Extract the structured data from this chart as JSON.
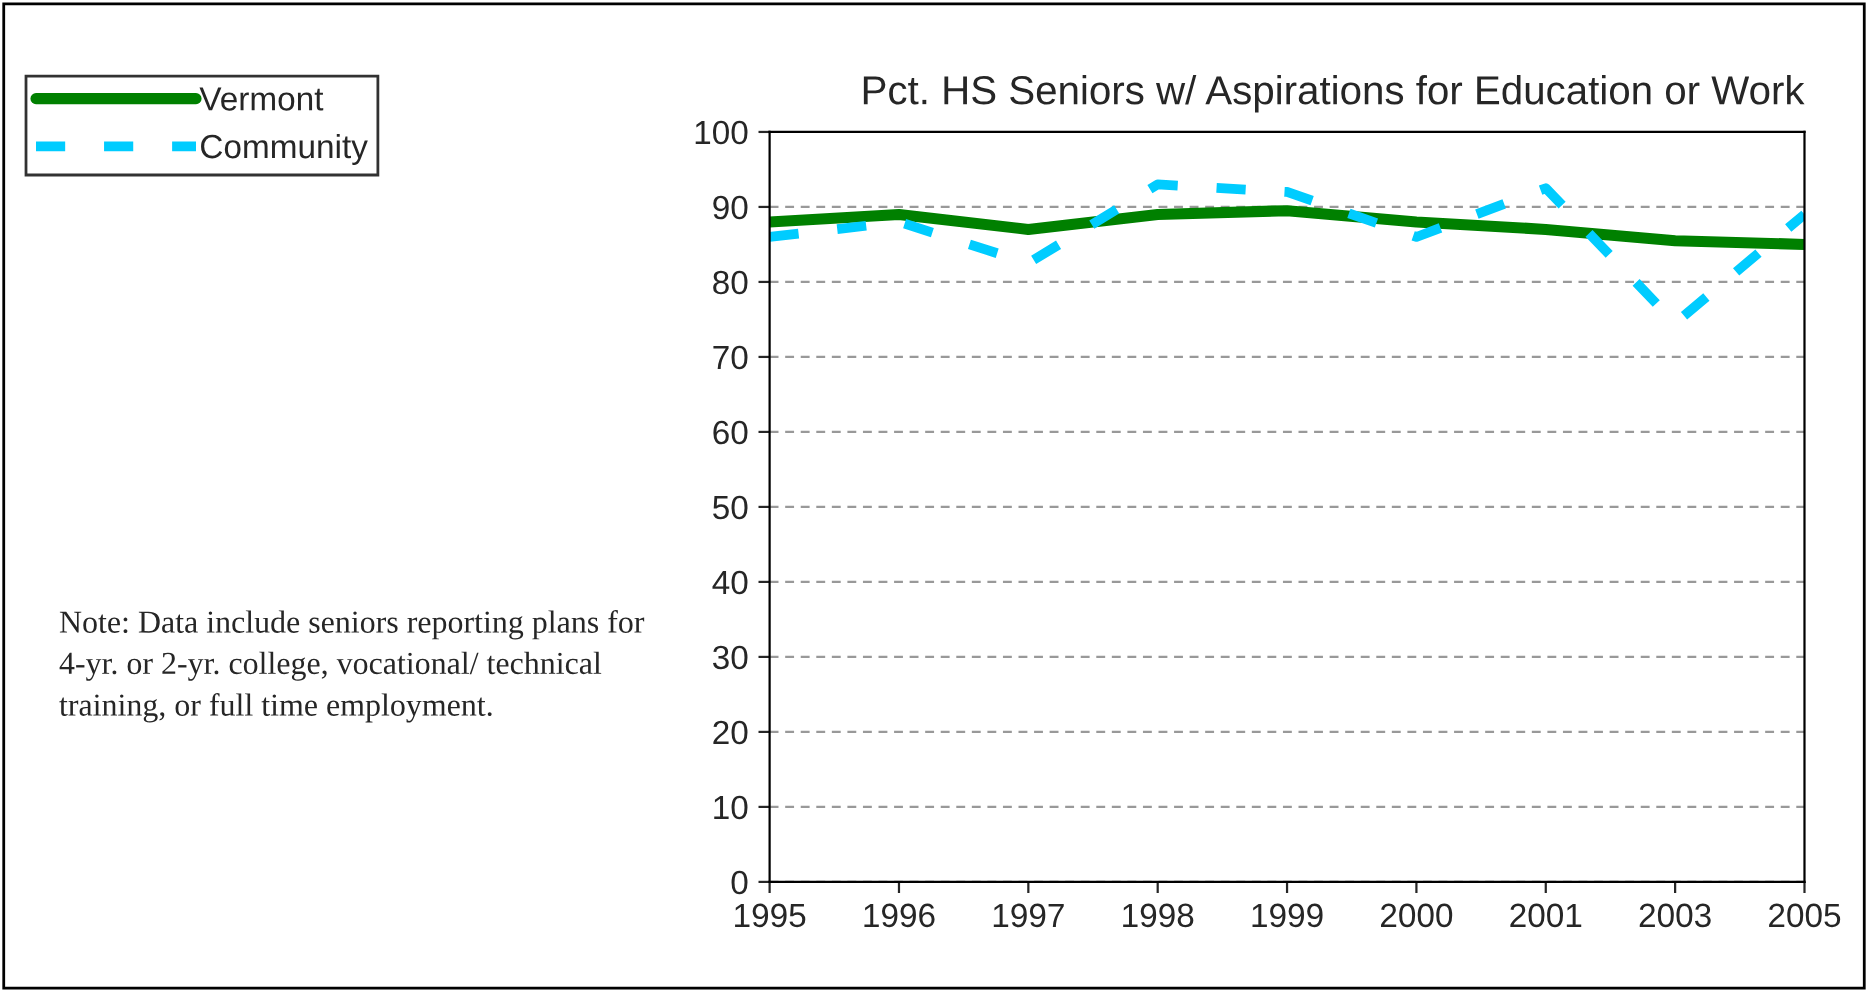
{
  "chart_data": {
    "type": "line",
    "title": "Pct. HS Seniors w/ Aspirations for Education or Work",
    "categories": [
      "1995",
      "1996",
      "1997",
      "1998",
      "1999",
      "2000",
      "2001",
      "2003",
      "2005"
    ],
    "series": [
      {
        "name": "Vermont",
        "color": "#008000",
        "line_style": "solid",
        "values": [
          88,
          89,
          87,
          89,
          89.5,
          88,
          87,
          85.5,
          85
        ]
      },
      {
        "name": "Community",
        "color": "#00ccff",
        "line_style": "dashed",
        "values": [
          86,
          88,
          82.5,
          93,
          92,
          86,
          92.5,
          74.5,
          89
        ]
      }
    ],
    "ylim": [
      0,
      100
    ],
    "yticks": [
      0,
      10,
      20,
      30,
      40,
      50,
      60,
      70,
      80,
      90,
      100
    ],
    "grid": "y",
    "legend": "top left",
    "marker": "none",
    "annotations": [
      "Note: Data include seniors reporting plans for 4-yr. or 2-yr. college, vocational/ technical training, or full time employment."
    ]
  }
}
